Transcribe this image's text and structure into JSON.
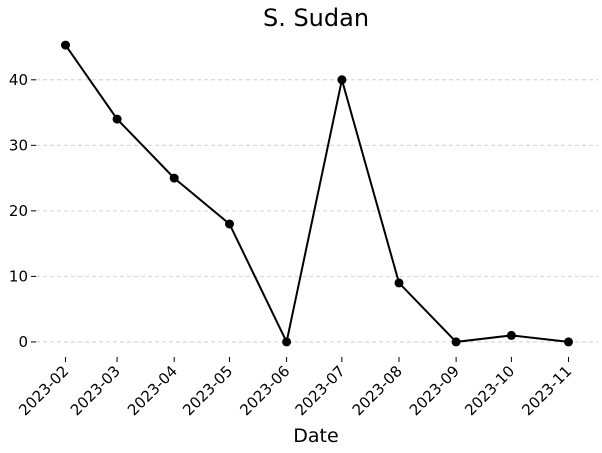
{
  "chart_data": {
    "type": "line",
    "title": "S. Sudan",
    "xlabel": "Date",
    "ylabel": "",
    "categories": [
      "2023-02",
      "2023-03",
      "2023-04",
      "2023-05",
      "2023-06",
      "2023-07",
      "2023-08",
      "2023-09",
      "2023-10",
      "2023-11"
    ],
    "x": [
      "2023-01-31",
      "2023-02-28",
      "2023-03-31",
      "2023-04-30",
      "2023-05-31",
      "2023-06-30",
      "2023-07-31",
      "2023-08-31",
      "2023-09-30",
      "2023-10-31"
    ],
    "series": [
      {
        "values": [
          45.3,
          34,
          25,
          18,
          0,
          40,
          9,
          0,
          1,
          0
        ],
        "color": "#000000"
      }
    ],
    "yticks": [
      0,
      10,
      20,
      30,
      40
    ],
    "ylim": [
      -2.3,
      47.6
    ],
    "grid": "y-dashed",
    "legend": "none"
  }
}
